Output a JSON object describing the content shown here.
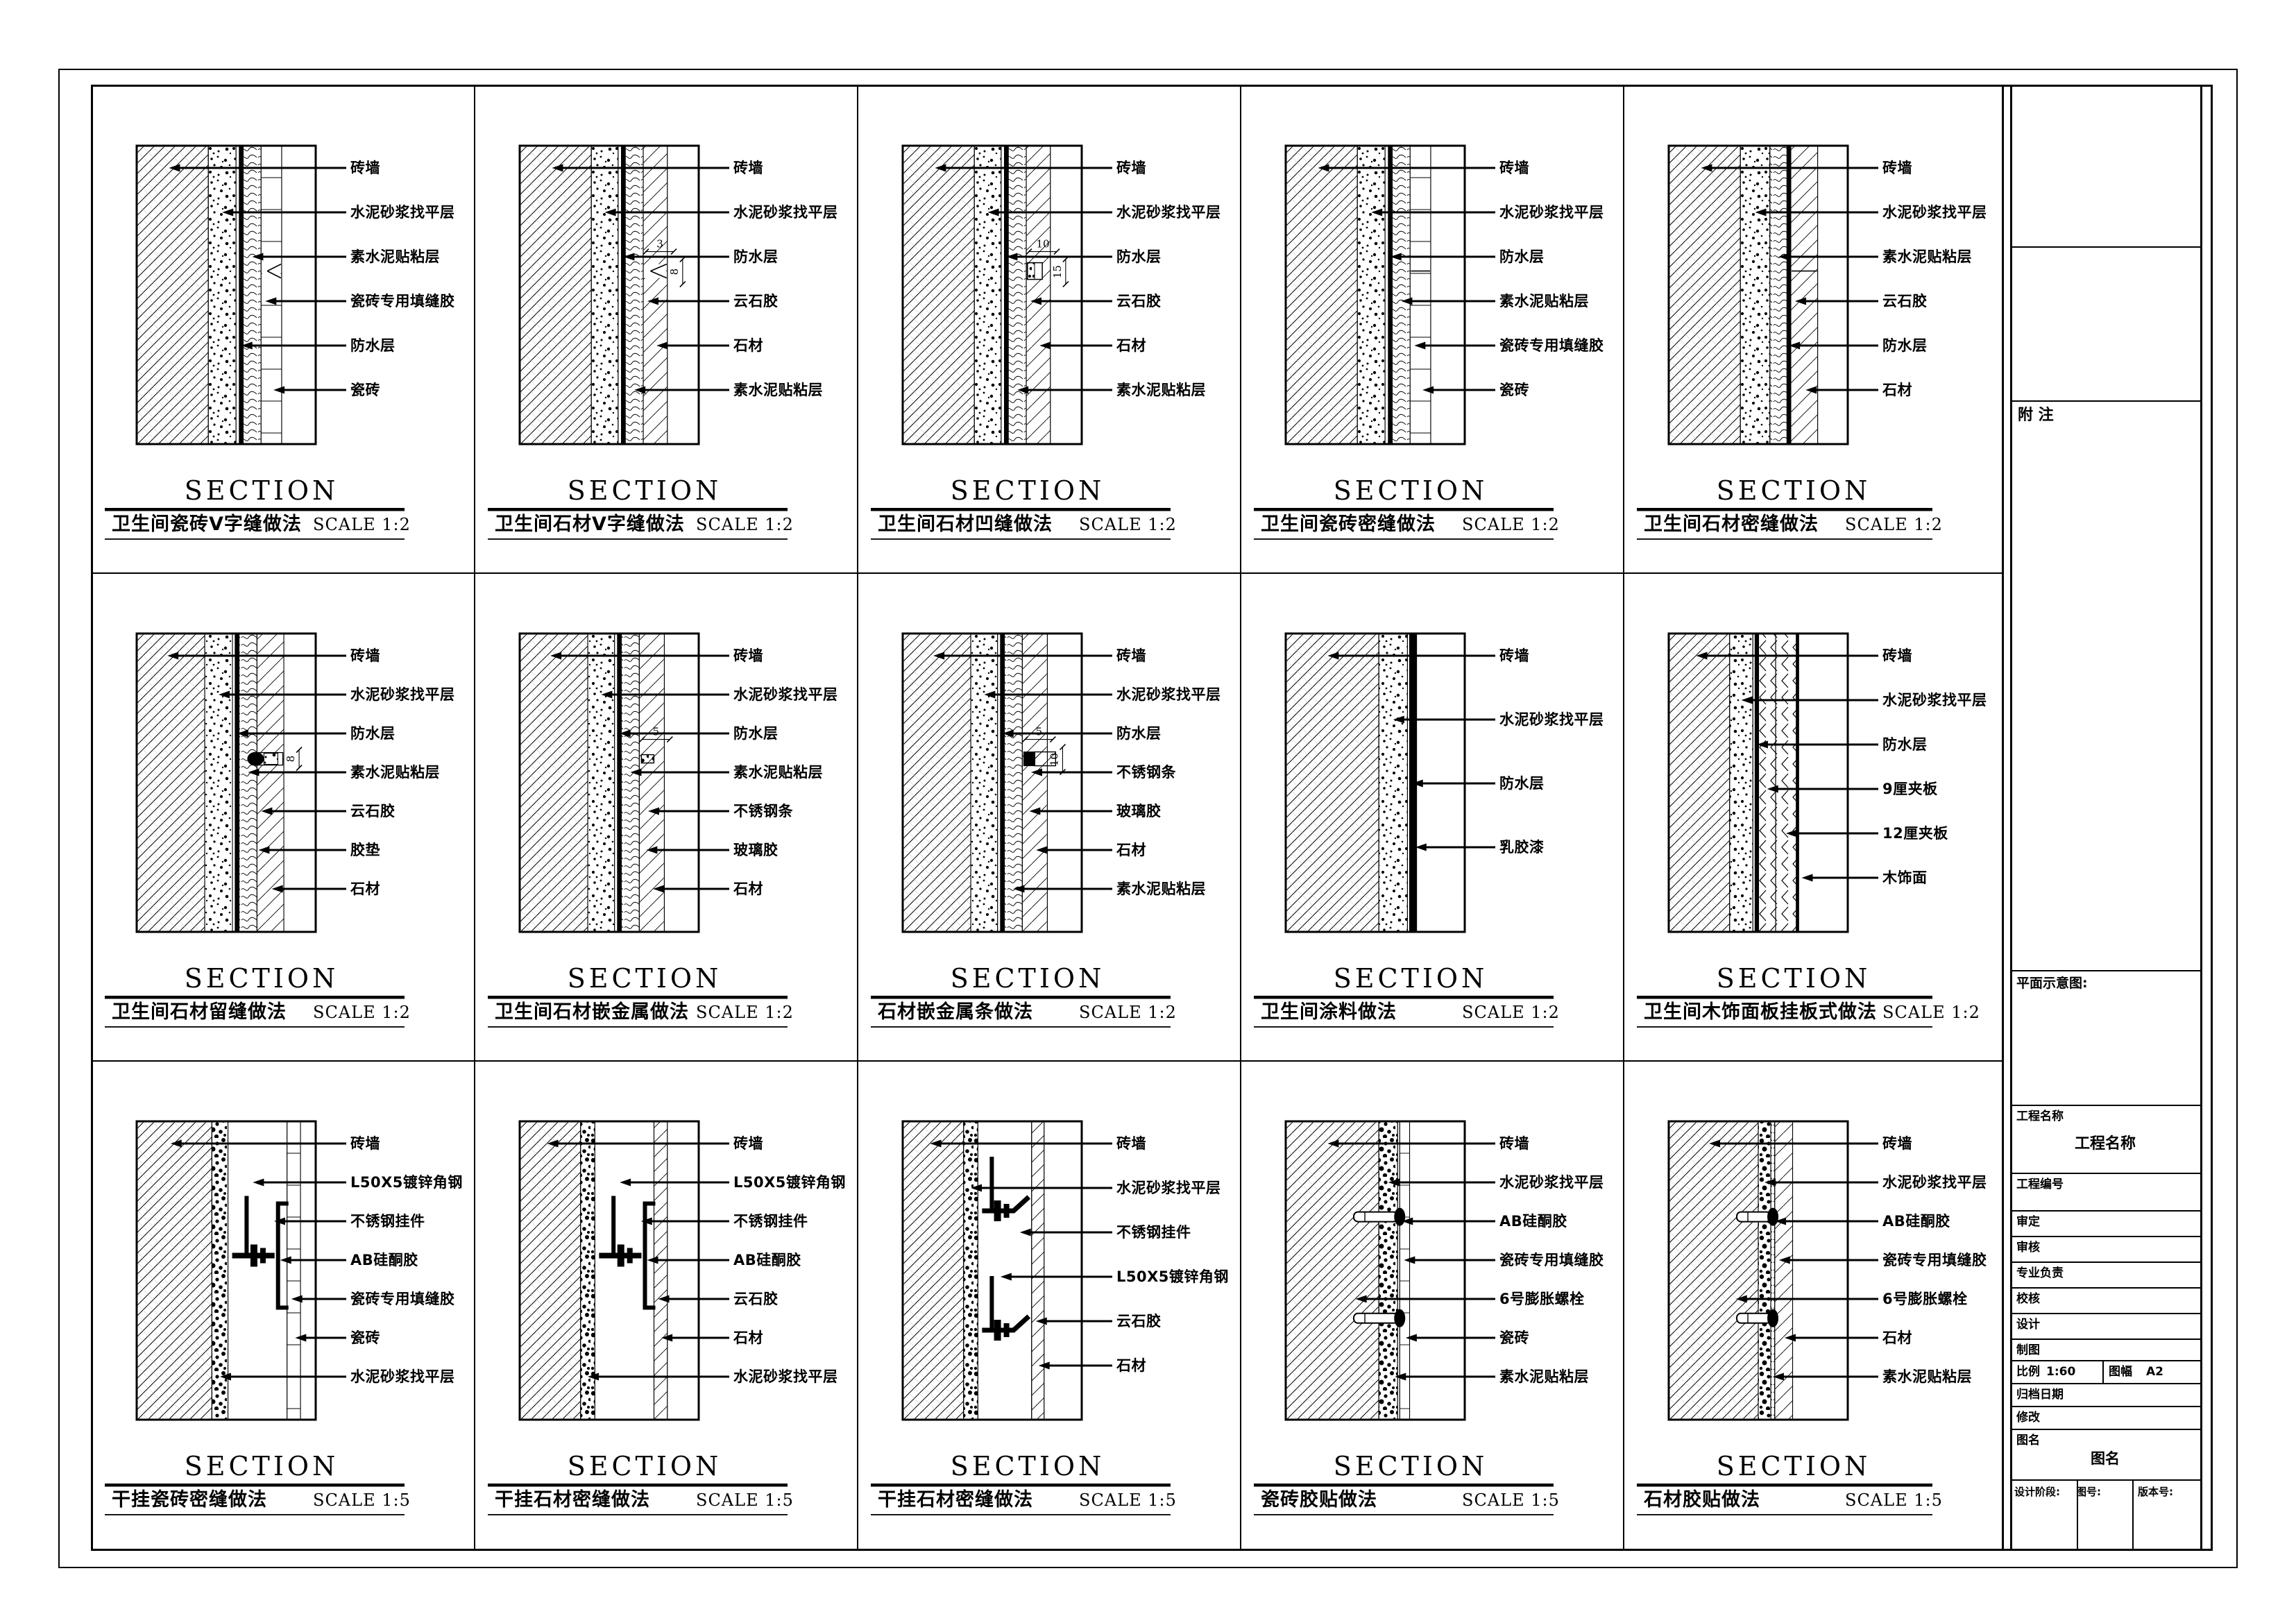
{
  "sheet": {
    "section_heading": "SECTION",
    "details": [
      {
        "title": "卫生间瓷砖V字缝做法",
        "scale": "SCALE 1:2",
        "overlay": "vjoint",
        "dims": [],
        "bands": [
          [
            "brick",
            0.4
          ],
          [
            "speck",
            0.155
          ],
          [
            "gap",
            0.018
          ],
          [
            "wp",
            0.022
          ],
          [
            "paste",
            0.1
          ],
          [
            "tile",
            0.115
          ],
          [
            "air",
            0.19
          ]
        ],
        "labels": [
          {
            "text": "砖墙",
            "t": "brick"
          },
          {
            "text": "水泥砂浆找平层",
            "t": "speck"
          },
          {
            "text": "素水泥贴粘层",
            "t": "paste"
          },
          {
            "text": "瓷砖专用填缝胶",
            "t": "joint"
          },
          {
            "text": "防水层",
            "t": "wp"
          },
          {
            "text": "瓷砖",
            "t": "tile"
          }
        ]
      },
      {
        "title": "卫生间石材V字缝做法",
        "scale": "SCALE 1:2",
        "overlay": "vjoint",
        "dims": [
          "3",
          "8"
        ],
        "bands": [
          [
            "brick",
            0.4
          ],
          [
            "speck",
            0.15
          ],
          [
            "gap",
            0.018
          ],
          [
            "wp",
            0.022
          ],
          [
            "paste",
            0.1
          ],
          [
            "stone",
            0.135
          ],
          [
            "air",
            0.175
          ]
        ],
        "labels": [
          {
            "text": "砖墙",
            "t": "brick"
          },
          {
            "text": "水泥砂浆找平层",
            "t": "speck"
          },
          {
            "text": "防水层",
            "t": "wp"
          },
          {
            "text": "云石胶",
            "t": "joint"
          },
          {
            "text": "石材",
            "t": "face"
          },
          {
            "text": "素水泥贴粘层",
            "t": "paste"
          }
        ]
      },
      {
        "title": "卫生间石材凹缝做法",
        "scale": "SCALE 1:2",
        "overlay": "groove",
        "dims": [
          "10",
          "15"
        ],
        "bands": [
          [
            "brick",
            0.4
          ],
          [
            "speck",
            0.15
          ],
          [
            "gap",
            0.018
          ],
          [
            "wp",
            0.022
          ],
          [
            "paste",
            0.1
          ],
          [
            "stone",
            0.135
          ],
          [
            "air",
            0.175
          ]
        ],
        "labels": [
          {
            "text": "砖墙",
            "t": "brick"
          },
          {
            "text": "水泥砂浆找平层",
            "t": "speck"
          },
          {
            "text": "防水层",
            "t": "wp"
          },
          {
            "text": "云石胶",
            "t": "joint"
          },
          {
            "text": "石材",
            "t": "face"
          },
          {
            "text": "素水泥贴粘层",
            "t": "paste"
          }
        ]
      },
      {
        "title": "卫生间瓷砖密缝做法",
        "scale": "SCALE 1:2",
        "overlay": "seam",
        "dims": [],
        "bands": [
          [
            "brick",
            0.4
          ],
          [
            "speck",
            0.155
          ],
          [
            "gap",
            0.018
          ],
          [
            "wp",
            0.022
          ],
          [
            "paste",
            0.1
          ],
          [
            "tile",
            0.115
          ],
          [
            "air",
            0.19
          ]
        ],
        "labels": [
          {
            "text": "砖墙",
            "t": "brick"
          },
          {
            "text": "水泥砂浆找平层",
            "t": "speck"
          },
          {
            "text": "防水层",
            "t": "wp"
          },
          {
            "text": "素水泥贴粘层",
            "t": "paste"
          },
          {
            "text": "瓷砖专用填缝胶",
            "t": "joint"
          },
          {
            "text": "瓷砖",
            "t": "tile"
          }
        ]
      },
      {
        "title": "卫生间石材密缝做法",
        "scale": "SCALE 1:2",
        "overlay": "seam",
        "dims": [],
        "bands": [
          [
            "brick",
            0.4
          ],
          [
            "speck",
            0.165
          ],
          [
            "paste",
            0.095
          ],
          [
            "wp",
            0.022
          ],
          [
            "stone",
            0.15
          ],
          [
            "air",
            0.168
          ]
        ],
        "labels": [
          {
            "text": "砖墙",
            "t": "brick"
          },
          {
            "text": "水泥砂浆找平层",
            "t": "speck"
          },
          {
            "text": "素水泥贴粘层",
            "t": "paste"
          },
          {
            "text": "云石胶",
            "t": "joint"
          },
          {
            "text": "防水层",
            "t": "wp"
          },
          {
            "text": "石材",
            "t": "face"
          }
        ]
      },
      {
        "title": "卫生间石材留缝做法",
        "scale": "SCALE 1:2",
        "overlay": "gasket",
        "dims": [
          "8"
        ],
        "bands": [
          [
            "brick",
            0.38
          ],
          [
            "speck",
            0.155
          ],
          [
            "gap",
            0.015
          ],
          [
            "wp",
            0.022
          ],
          [
            "paste",
            0.1
          ],
          [
            "stone",
            0.15
          ],
          [
            "air",
            0.178
          ]
        ],
        "labels": [
          {
            "text": "砖墙",
            "t": "brick"
          },
          {
            "text": "水泥砂浆找平层",
            "t": "speck"
          },
          {
            "text": "防水层",
            "t": "wp"
          },
          {
            "text": "素水泥贴粘层",
            "t": "paste"
          },
          {
            "text": "云石胶",
            "t": "joint"
          },
          {
            "text": "胶垫",
            "t": "gasket"
          },
          {
            "text": "石材",
            "t": "face"
          }
        ]
      },
      {
        "title": "卫生间石材嵌金属做法",
        "scale": "SCALE 1:2",
        "overlay": "strip",
        "dims": [
          "5"
        ],
        "bands": [
          [
            "brick",
            0.38
          ],
          [
            "speck",
            0.15
          ],
          [
            "gap",
            0.016
          ],
          [
            "wp",
            0.022
          ],
          [
            "paste",
            0.1
          ],
          [
            "stone",
            0.14
          ],
          [
            "air",
            0.192
          ]
        ],
        "labels": [
          {
            "text": "砖墙",
            "t": "brick"
          },
          {
            "text": "水泥砂浆找平层",
            "t": "speck"
          },
          {
            "text": "防水层",
            "t": "wp"
          },
          {
            "text": "素水泥贴粘层",
            "t": "paste"
          },
          {
            "text": "不锈钢条",
            "t": "strip"
          },
          {
            "text": "玻璃胶",
            "t": "glue"
          },
          {
            "text": "石材",
            "t": "face"
          }
        ]
      },
      {
        "title": "石材嵌金属条做法",
        "scale": "SCALE 1:2",
        "overlay": "strip2",
        "dims": [
          "5",
          "10"
        ],
        "bands": [
          [
            "brick",
            0.38
          ],
          [
            "speck",
            0.15
          ],
          [
            "gap",
            0.016
          ],
          [
            "wp",
            0.022
          ],
          [
            "paste",
            0.1
          ],
          [
            "stone",
            0.14
          ],
          [
            "air",
            0.192
          ]
        ],
        "labels": [
          {
            "text": "砖墙",
            "t": "brick"
          },
          {
            "text": "水泥砂浆找平层",
            "t": "speck"
          },
          {
            "text": "防水层",
            "t": "wp"
          },
          {
            "text": "不锈钢条",
            "t": "strip"
          },
          {
            "text": "玻璃胶",
            "t": "glue"
          },
          {
            "text": "石材",
            "t": "face"
          },
          {
            "text": "素水泥贴粘层",
            "t": "paste"
          }
        ]
      },
      {
        "title": "卫生间涂料做法",
        "scale": "SCALE 1:2",
        "overlay": "none",
        "dims": [],
        "bands": [
          [
            "brick",
            0.52
          ],
          [
            "speck",
            0.16
          ],
          [
            "gap",
            0.012
          ],
          [
            "wp",
            0.025
          ],
          [
            "paint",
            0.014
          ],
          [
            "air",
            0.269
          ]
        ],
        "labels": [
          {
            "text": "砖墙",
            "t": "brick"
          },
          {
            "text": "水泥砂浆找平层",
            "t": "speck"
          },
          {
            "text": "防水层",
            "t": "wp"
          },
          {
            "text": "乳胶漆",
            "t": "paint"
          }
        ]
      },
      {
        "title": "卫生间木饰面板挂板式做法",
        "scale": "SCALE 1:2",
        "overlay": "none",
        "dims": [],
        "bands": [
          [
            "brick",
            0.34
          ],
          [
            "speck",
            0.13
          ],
          [
            "gap",
            0.012
          ],
          [
            "wp",
            0.02
          ],
          [
            "ply",
            0.095
          ],
          [
            "ply",
            0.115
          ],
          [
            "wood",
            0.014
          ],
          [
            "air",
            0.274
          ]
        ],
        "labels": [
          {
            "text": "砖墙",
            "t": "brick"
          },
          {
            "text": "水泥砂浆找平层",
            "t": "speck"
          },
          {
            "text": "防水层",
            "t": "wp"
          },
          {
            "text": "9厘夹板",
            "t": "ply1"
          },
          {
            "text": "12厘夹板",
            "t": "ply2"
          },
          {
            "text": "木饰面",
            "t": "wood"
          }
        ]
      },
      {
        "title": "干挂瓷砖密缝做法",
        "scale": "SCALE 1:5",
        "overlay": "bracket",
        "dims": [],
        "bands": [
          [
            "brick",
            0.42
          ],
          [
            "rub",
            0.09
          ],
          [
            "cav",
            0.33
          ],
          [
            "tile",
            0.075
          ],
          [
            "air",
            0.085
          ]
        ],
        "labels": [
          {
            "text": "砖墙",
            "t": "brick"
          },
          {
            "text": "L50X5镀锌角钢",
            "t": "cav1"
          },
          {
            "text": "不锈钢挂件",
            "t": "cav2"
          },
          {
            "text": "AB硅酮胶",
            "t": "plate"
          },
          {
            "text": "瓷砖专用填缝胶",
            "t": "joint"
          },
          {
            "text": "瓷砖",
            "t": "tile"
          },
          {
            "text": "水泥砂浆找平层",
            "t": "speck"
          }
        ]
      },
      {
        "title": "干挂石材密缝做法",
        "scale": "SCALE 1:5",
        "overlay": "bracket",
        "dims": [],
        "bands": [
          [
            "brick",
            0.34
          ],
          [
            "rub",
            0.08
          ],
          [
            "cav",
            0.33
          ],
          [
            "stone",
            0.075
          ],
          [
            "air",
            0.175
          ]
        ],
        "labels": [
          {
            "text": "砖墙",
            "t": "brick"
          },
          {
            "text": "L50X5镀锌角钢",
            "t": "cav1"
          },
          {
            "text": "不锈钢挂件",
            "t": "cav2"
          },
          {
            "text": "AB硅酮胶",
            "t": "plate"
          },
          {
            "text": "云石胶",
            "t": "joint"
          },
          {
            "text": "石材",
            "t": "face"
          },
          {
            "text": "水泥砂浆找平层",
            "t": "speck"
          }
        ]
      },
      {
        "title": "干挂石材密缝做法",
        "scale": "SCALE 1:5",
        "overlay": "bracket2",
        "dims": [],
        "bands": [
          [
            "brick",
            0.34
          ],
          [
            "rub",
            0.08
          ],
          [
            "cav",
            0.3
          ],
          [
            "stone",
            0.07
          ],
          [
            "air",
            0.21
          ]
        ],
        "labels": [
          {
            "text": "砖墙",
            "t": "brick"
          },
          {
            "text": "水泥砂浆找平层",
            "t": "speck"
          },
          {
            "text": "不锈钢挂件",
            "t": "cav2"
          },
          {
            "text": "L50X5镀锌角钢",
            "t": "cav1"
          },
          {
            "text": "云石胶",
            "t": "joint"
          },
          {
            "text": "石材",
            "t": "face"
          }
        ]
      },
      {
        "title": "瓷砖胶贴做法",
        "scale": "SCALE 1:5",
        "overlay": "bolt2",
        "dims": [],
        "bands": [
          [
            "brick",
            0.52
          ],
          [
            "rub",
            0.105
          ],
          [
            "gap",
            0.012
          ],
          [
            "tile",
            0.055
          ],
          [
            "air",
            0.308
          ]
        ],
        "labels": [
          {
            "text": "砖墙",
            "t": "brick"
          },
          {
            "text": "水泥砂浆找平层",
            "t": "speck"
          },
          {
            "text": "AB硅酮胶",
            "t": "boltglue"
          },
          {
            "text": "瓷砖专用填缝胶",
            "t": "joint"
          },
          {
            "text": "6号膨胀螺栓",
            "t": "bolt"
          },
          {
            "text": "瓷砖",
            "t": "tile"
          },
          {
            "text": "素水泥贴粘层",
            "t": "paste"
          }
        ]
      },
      {
        "title": "石材胶贴做法",
        "scale": "SCALE 1:5",
        "overlay": "bolt2",
        "dims": [],
        "bands": [
          [
            "brick",
            0.5
          ],
          [
            "rub",
            0.07
          ],
          [
            "paste",
            0.022
          ],
          [
            "stone",
            0.1
          ],
          [
            "air",
            0.308
          ]
        ],
        "labels": [
          {
            "text": "砖墙",
            "t": "brick"
          },
          {
            "text": "水泥砂浆找平层",
            "t": "speck"
          },
          {
            "text": "AB硅酮胶",
            "t": "boltglue"
          },
          {
            "text": "瓷砖专用填缝胶",
            "t": "joint"
          },
          {
            "text": "6号膨胀螺栓",
            "t": "bolt"
          },
          {
            "text": "石材",
            "t": "face"
          },
          {
            "text": "素水泥贴粘层",
            "t": "paste"
          }
        ]
      }
    ],
    "titleblock": {
      "notes": "附 注",
      "plan": "平面示意图:",
      "rows": [
        {
          "label": "工程名称",
          "value": "工程名称"
        },
        {
          "label": "工程编号"
        },
        {
          "label": "审定"
        },
        {
          "label": "审核"
        },
        {
          "label": "专业负责"
        },
        {
          "label": "校核"
        },
        {
          "label": "设计"
        },
        {
          "label": "制图"
        },
        {
          "label": "比例",
          "value": "1:60",
          "label2": "图幅",
          "value2": "A2"
        },
        {
          "label": "归档日期"
        },
        {
          "label": "修改"
        },
        {
          "label": "图名",
          "value": "图名"
        }
      ],
      "bottom": [
        "设计阶段:",
        "图号:",
        "版本号:"
      ]
    }
  }
}
